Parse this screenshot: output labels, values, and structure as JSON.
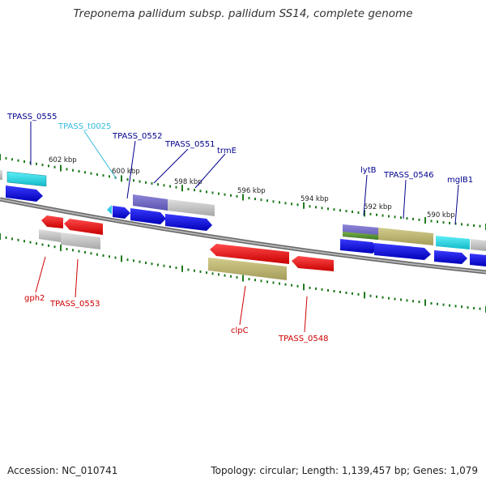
{
  "title": "Treponema pallidum subsp. pallidum SS14, complete genome",
  "footer": {
    "accession": "Accession: NC_010741",
    "topology": "Topology: circular; Length: 1,139,457 bp; Genes: 1,079"
  },
  "colors": {
    "backbone": "#888888",
    "tick": "#1f7a1f",
    "forward_gene": "#1010e0",
    "reverse_gene": "#ee1111",
    "trna": "#22ccdd",
    "label_forward": "#00008b",
    "label_reverse": "#cc0000",
    "label_trna": "#33bbdd",
    "scale_text": "#222222"
  },
  "scale_labels": [
    "602 kbp",
    "600 kbp",
    "598 kbp",
    "596 kbp",
    "594 kbp",
    "592 kbp",
    "590 kbp"
  ],
  "gene_labels_top": [
    {
      "text": "TPASS_0555",
      "kind": "forward"
    },
    {
      "text": "TPASS_t0025",
      "kind": "trna"
    },
    {
      "text": "TPASS_0552",
      "kind": "forward"
    },
    {
      "text": "TPASS_0551",
      "kind": "forward"
    },
    {
      "text": "trmE",
      "kind": "forward"
    },
    {
      "text": "lytB",
      "kind": "forward"
    },
    {
      "text": "TPASS_0546",
      "kind": "forward"
    },
    {
      "text": "mglB1",
      "kind": "forward"
    }
  ],
  "gene_labels_bottom": [
    {
      "text": "gph2",
      "kind": "reverse"
    },
    {
      "text": "TPASS_0553",
      "kind": "reverse"
    },
    {
      "text": "clpC",
      "kind": "reverse"
    },
    {
      "text": "TPASS_0548",
      "kind": "reverse"
    }
  ]
}
